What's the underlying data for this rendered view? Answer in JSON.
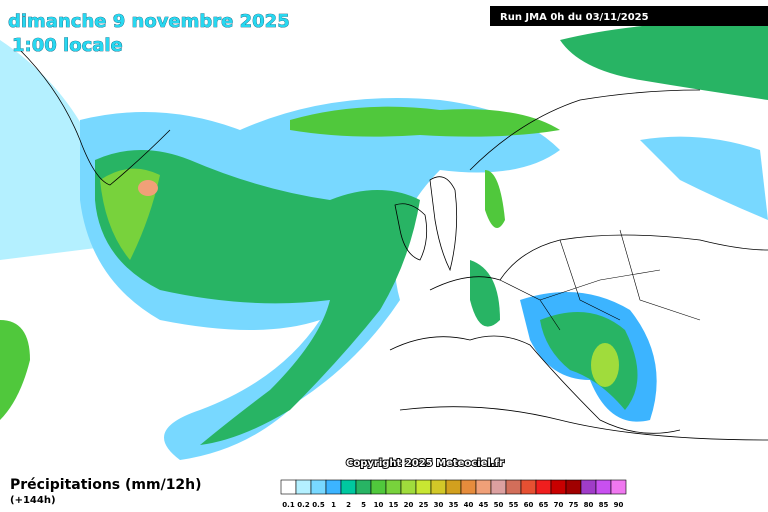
{
  "header": {
    "date": "dimanche 9 novembre 2025",
    "time": "1:00 locale",
    "run": "Run JMA 0h du 03/11/2025"
  },
  "copyright": "Copyright 2025 Meteociel.fr",
  "footer": {
    "variable": "Précipitations (mm/12h)",
    "lead": "(+144h)"
  },
  "legend": [
    {
      "label": "0.1",
      "color": "#ffffff"
    },
    {
      "label": "0.2",
      "color": "#b4f0ff"
    },
    {
      "label": "0.5",
      "color": "#78d8ff"
    },
    {
      "label": "1",
      "color": "#3cb4ff"
    },
    {
      "label": "2",
      "color": "#00c8a0"
    },
    {
      "label": "5",
      "color": "#28b464"
    },
    {
      "label": "10",
      "color": "#50c83c"
    },
    {
      "label": "15",
      "color": "#78d23c"
    },
    {
      "label": "20",
      "color": "#a0dc3c"
    },
    {
      "label": "25",
      "color": "#c8e632"
    },
    {
      "label": "30",
      "color": "#d2c828"
    },
    {
      "label": "35",
      "color": "#d2a01e"
    },
    {
      "label": "40",
      "color": "#e68c3c"
    },
    {
      "label": "45",
      "color": "#f0a078"
    },
    {
      "label": "50",
      "color": "#dca0a0"
    },
    {
      "label": "55",
      "color": "#d26e5a"
    },
    {
      "label": "60",
      "color": "#e65032"
    },
    {
      "label": "65",
      "color": "#f01e1e"
    },
    {
      "label": "70",
      "color": "#c80000"
    },
    {
      "label": "75",
      "color": "#a00000"
    },
    {
      "label": "80",
      "color": "#a03cc8"
    },
    {
      "label": "85",
      "color": "#c850f0"
    },
    {
      "label": "90",
      "color": "#f078f0"
    }
  ]
}
